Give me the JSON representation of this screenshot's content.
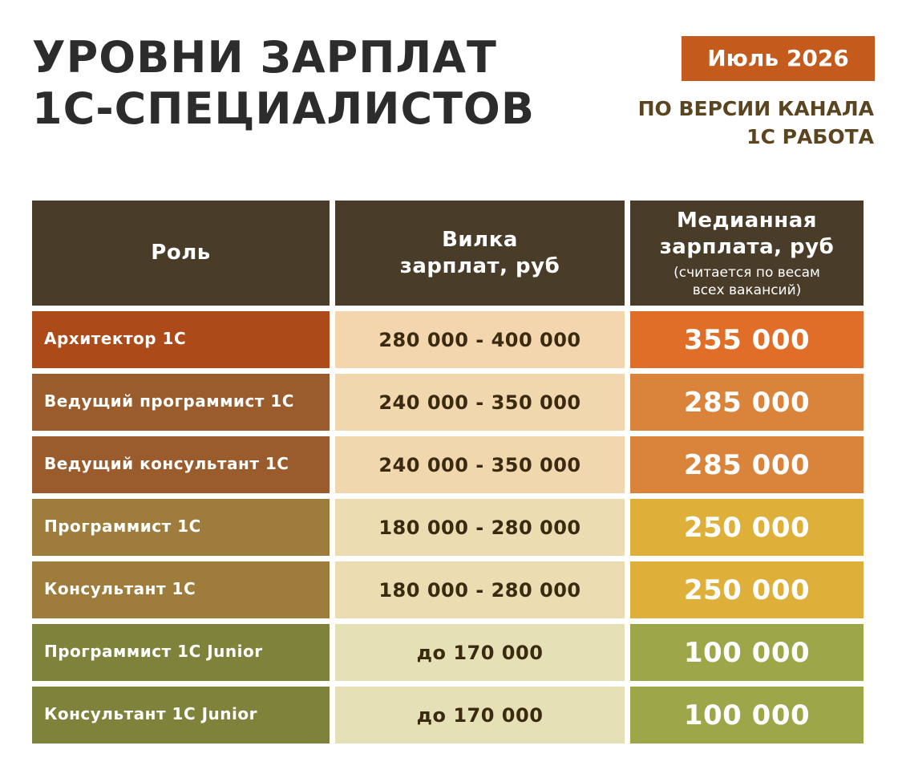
{
  "title": {
    "line1": "УРОВНИ ЗАРПЛАТ",
    "line2": "1С-СПЕЦИАЛИСТОВ"
  },
  "date_badge": "Июль 2026",
  "source": {
    "line1": "ПО ВЕРСИИ КАНАЛА",
    "line2": "1С РАБОТА"
  },
  "table": {
    "headers": {
      "role": "Роль",
      "range_line1": "Вилка",
      "range_line2": "зарплат, руб",
      "median_line1": "Медианная",
      "median_line2": "зарплата, руб",
      "median_note_line1": "(считается по весам",
      "median_note_line2": "всех вакансий)"
    },
    "rows": [
      {
        "role": "Архитектор 1С",
        "range": "280 000 - 400 000",
        "median": "355 000",
        "role_color": "#ad4a1a",
        "range_color": "#f4d6ae",
        "median_color": "#e06e29"
      },
      {
        "role": "Ведущий программист 1С",
        "range": "240 000 - 350 000",
        "median": "285 000",
        "role_color": "#9a5c2c",
        "range_color": "#f1d7ad",
        "median_color": "#d9843a"
      },
      {
        "role": "Ведущий консультант 1С",
        "range": "240 000 - 350 000",
        "median": "285 000",
        "role_color": "#9a5c2c",
        "range_color": "#f1d7ad",
        "median_color": "#d9843a"
      },
      {
        "role": "Программист 1С",
        "range": "180 000 - 280 000",
        "median": "250 000",
        "role_color": "#9e7d3c",
        "range_color": "#ecdcb2",
        "median_color": "#deb03a"
      },
      {
        "role": "Консультант 1С",
        "range": "180 000 - 280 000",
        "median": "250 000",
        "role_color": "#9e7d3c",
        "range_color": "#ecdcb2",
        "median_color": "#deb03a"
      },
      {
        "role": "Программист 1С Junior",
        "range": "до 170 000",
        "median": "100 000",
        "role_color": "#7e823a",
        "range_color": "#e6e0b6",
        "median_color": "#9ea64a"
      },
      {
        "role": "Консультант 1С Junior",
        "range": "до 170 000",
        "median": "100 000",
        "role_color": "#7e823a",
        "range_color": "#e6e0b6",
        "median_color": "#9ea64a"
      }
    ]
  }
}
